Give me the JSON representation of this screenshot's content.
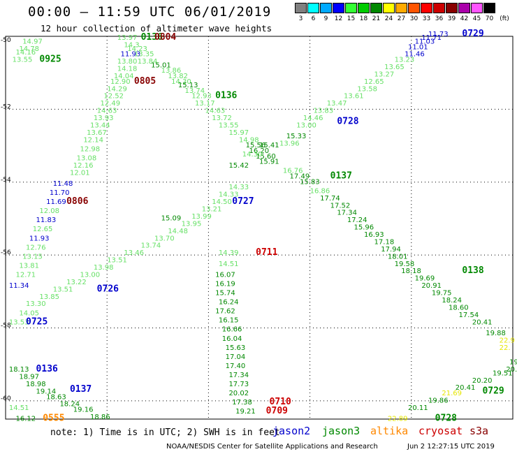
{
  "header": {
    "title": "00:00 – 11:59 UTC 06/01/2019",
    "subtitle": "12 hour collection of altimeter wave heights"
  },
  "legend": {
    "unit": "(ft)",
    "bins": [
      {
        "label": "3",
        "color": "#808080"
      },
      {
        "label": "6",
        "color": "#00ffff"
      },
      {
        "label": "9",
        "color": "#00aaff"
      },
      {
        "label": "12",
        "color": "#0000ff"
      },
      {
        "label": "15",
        "color": "#33ff33"
      },
      {
        "label": "18",
        "color": "#00cc00"
      },
      {
        "label": "21",
        "color": "#008800"
      },
      {
        "label": "24",
        "color": "#ffff00"
      },
      {
        "label": "27",
        "color": "#ffaa00"
      },
      {
        "label": "30",
        "color": "#ff5500"
      },
      {
        "label": "33",
        "color": "#ff0000"
      },
      {
        "label": "36",
        "color": "#cc0000"
      },
      {
        "label": "39",
        "color": "#880000"
      },
      {
        "label": "42",
        "color": "#aa00aa"
      },
      {
        "label": "45",
        "color": "#ff55ff"
      },
      {
        "label": "70",
        "color": "#000000"
      }
    ]
  },
  "axes": {
    "lon_ticks": [
      "15",
      "18",
      "21",
      "24",
      "27",
      "30"
    ],
    "lat_ticks": [
      "-50",
      "-52",
      "-54",
      "-56",
      "-58",
      "-60"
    ]
  },
  "colors": {
    "lgreen": "#66e066",
    "green": "#008800",
    "blue": "#0000cc",
    "red": "#cc0000",
    "dred": "#880000",
    "yellow": "#e6e600",
    "orange": "#ff8800"
  },
  "observations": [
    {
      "lon": 15.5,
      "lat": -50.2,
      "t": "14.97",
      "c": "lgreen"
    },
    {
      "lon": 15.4,
      "lat": -50.4,
      "t": "14.78",
      "c": "lgreen"
    },
    {
      "lon": 15.3,
      "lat": -50.5,
      "t": "14.16",
      "c": "lgreen"
    },
    {
      "lon": 15.2,
      "lat": -50.7,
      "t": "13.55",
      "c": "lgreen"
    },
    {
      "lon": 16.0,
      "lat": -50.7,
      "t": "0925",
      "c": "green",
      "big": 1
    },
    {
      "lon": 18.3,
      "lat": -50.1,
      "t": "13.97",
      "c": "lgreen"
    },
    {
      "lon": 19.0,
      "lat": -50.1,
      "t": "0136",
      "c": "green",
      "big": 1
    },
    {
      "lon": 19.4,
      "lat": -50.1,
      "t": "0804",
      "c": "dred",
      "big": 1
    },
    {
      "lon": 18.5,
      "lat": -50.3,
      "t": "14.3",
      "c": "lgreen"
    },
    {
      "lon": 18.6,
      "lat": -50.4,
      "t": "14.23",
      "c": "lgreen"
    },
    {
      "lon": 18.4,
      "lat": -50.55,
      "t": "11.93",
      "c": "blue"
    },
    {
      "lon": 18.8,
      "lat": -50.55,
      "t": "13.35",
      "c": "lgreen"
    },
    {
      "lon": 18.3,
      "lat": -50.75,
      "t": "13.80",
      "c": "lgreen"
    },
    {
      "lon": 18.9,
      "lat": -50.75,
      "t": "13.84",
      "c": "lgreen"
    },
    {
      "lon": 19.3,
      "lat": -50.85,
      "t": "15.01",
      "c": "green"
    },
    {
      "lon": 18.3,
      "lat": -50.95,
      "t": "14.18",
      "c": "lgreen"
    },
    {
      "lon": 19.6,
      "lat": -51.0,
      "t": "13.86",
      "c": "lgreen"
    },
    {
      "lon": 18.2,
      "lat": -51.15,
      "t": "14.04",
      "c": "lgreen"
    },
    {
      "lon": 19.8,
      "lat": -51.15,
      "t": "13.82",
      "c": "lgreen"
    },
    {
      "lon": 18.1,
      "lat": -51.3,
      "t": "12.90",
      "c": "lgreen"
    },
    {
      "lon": 18.8,
      "lat": -51.3,
      "t": "0805",
      "c": "dred",
      "big": 1
    },
    {
      "lon": 19.9,
      "lat": -51.3,
      "t": "14.30",
      "c": "lgreen"
    },
    {
      "lon": 20.1,
      "lat": -51.4,
      "t": "15.13",
      "c": "green"
    },
    {
      "lon": 18.0,
      "lat": -51.5,
      "t": "14.29",
      "c": "lgreen"
    },
    {
      "lon": 20.3,
      "lat": -51.55,
      "t": "13.74",
      "c": "lgreen"
    },
    {
      "lon": 17.9,
      "lat": -51.7,
      "t": "12.52",
      "c": "lgreen"
    },
    {
      "lon": 20.5,
      "lat": -51.7,
      "t": "12.93",
      "c": "lgreen"
    },
    {
      "lon": 21.2,
      "lat": -51.7,
      "t": "0136",
      "c": "green",
      "big": 1
    },
    {
      "lon": 17.8,
      "lat": -51.9,
      "t": "12.49",
      "c": "lgreen"
    },
    {
      "lon": 20.6,
      "lat": -51.9,
      "t": "13.17",
      "c": "lgreen"
    },
    {
      "lon": 17.7,
      "lat": -52.1,
      "t": "14.63",
      "c": "lgreen"
    },
    {
      "lon": 20.9,
      "lat": -52.1,
      "t": "14.63",
      "c": "lgreen"
    },
    {
      "lon": 17.6,
      "lat": -52.3,
      "t": "13.93",
      "c": "lgreen"
    },
    {
      "lon": 21.1,
      "lat": -52.3,
      "t": "13.72",
      "c": "lgreen"
    },
    {
      "lon": 17.5,
      "lat": -52.5,
      "t": "13.44",
      "c": "lgreen"
    },
    {
      "lon": 21.3,
      "lat": -52.5,
      "t": "13.55",
      "c": "lgreen"
    },
    {
      "lon": 17.4,
      "lat": -52.7,
      "t": "13.67",
      "c": "lgreen"
    },
    {
      "lon": 21.6,
      "lat": -52.7,
      "t": "15.97",
      "c": "lgreen"
    },
    {
      "lon": 17.3,
      "lat": -52.9,
      "t": "12.14",
      "c": "lgreen"
    },
    {
      "lon": 21.9,
      "lat": -52.9,
      "t": "14.98",
      "c": "lgreen"
    },
    {
      "lon": 17.2,
      "lat": -53.15,
      "t": "12.98",
      "c": "lgreen"
    },
    {
      "lon": 22.1,
      "lat": -53.05,
      "t": "15.56",
      "c": "green"
    },
    {
      "lon": 22.5,
      "lat": -53.05,
      "t": "15.41",
      "c": "green"
    },
    {
      "lon": 22.2,
      "lat": -53.2,
      "t": "16.20",
      "c": "green"
    },
    {
      "lon": 22.4,
      "lat": -53.35,
      "t": "15.60",
      "c": "green"
    },
    {
      "lon": 17.1,
      "lat": -53.4,
      "t": "13.08",
      "c": "lgreen"
    },
    {
      "lon": 22.5,
      "lat": -53.5,
      "t": "15.91",
      "c": "green"
    },
    {
      "lon": 21.6,
      "lat": -53.6,
      "t": "15.42",
      "c": "green"
    },
    {
      "lon": 17.0,
      "lat": -53.6,
      "t": "12.16",
      "c": "lgreen"
    },
    {
      "lon": 16.9,
      "lat": -53.8,
      "t": "12.01",
      "c": "lgreen"
    },
    {
      "lon": 23.2,
      "lat": -53.75,
      "t": "16.76",
      "c": "lgreen"
    },
    {
      "lon": 23.4,
      "lat": -53.9,
      "t": "17.49",
      "c": "green"
    },
    {
      "lon": 24.6,
      "lat": -53.9,
      "t": "0137",
      "c": "green",
      "big": 1
    },
    {
      "lon": 23.7,
      "lat": -54.05,
      "t": "15.83",
      "c": "green"
    },
    {
      "lon": 16.4,
      "lat": -54.1,
      "t": "11.48",
      "c": "blue"
    },
    {
      "lon": 16.3,
      "lat": -54.35,
      "t": "11.70",
      "c": "blue"
    },
    {
      "lon": 16.2,
      "lat": -54.6,
      "t": "11.69",
      "c": "blue"
    },
    {
      "lon": 16.8,
      "lat": -54.6,
      "t": "0806",
      "c": "dred",
      "big": 1
    },
    {
      "lon": 16.0,
      "lat": -54.85,
      "t": "12.08",
      "c": "lgreen"
    },
    {
      "lon": 15.9,
      "lat": -55.1,
      "t": "11.83",
      "c": "blue"
    },
    {
      "lon": 15.8,
      "lat": -55.35,
      "t": "12.65",
      "c": "lgreen"
    },
    {
      "lon": 15.7,
      "lat": -55.6,
      "t": "11.93",
      "c": "blue"
    },
    {
      "lon": 15.6,
      "lat": -55.85,
      "t": "12.76",
      "c": "lgreen"
    },
    {
      "lon": 21.7,
      "lat": -54.6,
      "t": "0727",
      "c": "blue",
      "big": 1
    },
    {
      "lon": 24.0,
      "lat": -54.3,
      "t": "16.86",
      "c": "lgreen"
    },
    {
      "lon": 24.3,
      "lat": -54.5,
      "t": "17.74",
      "c": "green"
    },
    {
      "lon": 24.6,
      "lat": -54.7,
      "t": "17.52",
      "c": "green"
    },
    {
      "lon": 24.8,
      "lat": -54.9,
      "t": "17.34",
      "c": "green"
    },
    {
      "lon": 25.1,
      "lat": -55.1,
      "t": "17.24",
      "c": "green"
    },
    {
      "lon": 25.3,
      "lat": -55.3,
      "t": "15.96",
      "c": "green"
    },
    {
      "lon": 25.6,
      "lat": -55.5,
      "t": "16.93",
      "c": "green"
    },
    {
      "lon": 25.9,
      "lat": -55.7,
      "t": "17.18",
      "c": "green"
    },
    {
      "lon": 26.1,
      "lat": -55.9,
      "t": "17.94",
      "c": "green"
    },
    {
      "lon": 26.3,
      "lat": -56.1,
      "t": "18.01",
      "c": "green"
    },
    {
      "lon": 15.5,
      "lat": -56.1,
      "t": "13.15",
      "c": "lgreen"
    },
    {
      "lon": 15.4,
      "lat": -56.35,
      "t": "13.81",
      "c": "lgreen"
    },
    {
      "lon": 15.3,
      "lat": -56.6,
      "t": "12.71",
      "c": "lgreen"
    },
    {
      "lon": 15.1,
      "lat": -56.9,
      "t": "11.34",
      "c": "blue"
    },
    {
      "lon": 17.7,
      "lat": -57.0,
      "t": "0726",
      "c": "blue",
      "big": 1
    },
    {
      "lon": 21.3,
      "lat": -56.0,
      "t": "14.39",
      "c": "lgreen"
    },
    {
      "lon": 22.4,
      "lat": -56.0,
      "t": "0711",
      "c": "red",
      "big": 1
    },
    {
      "lon": 21.3,
      "lat": -56.3,
      "t": "14.51",
      "c": "lgreen"
    },
    {
      "lon": 21.2,
      "lat": -56.6,
      "t": "16.07",
      "c": "green"
    },
    {
      "lon": 21.2,
      "lat": -56.85,
      "t": "16.19",
      "c": "green"
    },
    {
      "lon": 21.2,
      "lat": -57.1,
      "t": "15.74",
      "c": "green"
    },
    {
      "lon": 21.3,
      "lat": -57.35,
      "t": "16.24",
      "c": "green"
    },
    {
      "lon": 21.2,
      "lat": -57.6,
      "t": "17.62",
      "c": "green"
    },
    {
      "lon": 21.3,
      "lat": -57.85,
      "t": "16.15",
      "c": "green"
    },
    {
      "lon": 21.4,
      "lat": -58.1,
      "t": "16.66",
      "c": "green"
    },
    {
      "lon": 21.4,
      "lat": -58.35,
      "t": "16.04",
      "c": "green"
    },
    {
      "lon": 21.5,
      "lat": -58.6,
      "t": "15.63",
      "c": "green"
    },
    {
      "lon": 21.5,
      "lat": -58.85,
      "t": "17.04",
      "c": "green"
    },
    {
      "lon": 21.5,
      "lat": -59.1,
      "t": "17.40",
      "c": "green"
    },
    {
      "lon": 21.6,
      "lat": -59.35,
      "t": "17.34",
      "c": "green"
    },
    {
      "lon": 21.6,
      "lat": -59.6,
      "t": "17.73",
      "c": "green"
    },
    {
      "lon": 21.6,
      "lat": -59.85,
      "t": "20.02",
      "c": "green"
    },
    {
      "lon": 21.7,
      "lat": -60.1,
      "t": "17.38",
      "c": "green"
    },
    {
      "lon": 22.8,
      "lat": -60.1,
      "t": "0710",
      "c": "red",
      "big": 1
    },
    {
      "lon": 21.8,
      "lat": -60.35,
      "t": "19.21",
      "c": "green"
    },
    {
      "lon": 22.7,
      "lat": -60.35,
      "t": "0709",
      "c": "red",
      "big": 1
    },
    {
      "lon": 26.5,
      "lat": -56.3,
      "t": "19.58",
      "c": "green"
    },
    {
      "lon": 26.7,
      "lat": -56.5,
      "t": "18.18",
      "c": "green"
    },
    {
      "lon": 27.1,
      "lat": -56.7,
      "t": "19.69",
      "c": "green"
    },
    {
      "lon": 28.5,
      "lat": -56.5,
      "t": "0138",
      "c": "green",
      "big": 1
    },
    {
      "lon": 27.3,
      "lat": -56.9,
      "t": "20.91",
      "c": "green"
    },
    {
      "lon": 27.6,
      "lat": -57.1,
      "t": "19.75",
      "c": "green"
    },
    {
      "lon": 27.9,
      "lat": -57.3,
      "t": "18.24",
      "c": "green"
    },
    {
      "lon": 28.1,
      "lat": -57.5,
      "t": "18.60",
      "c": "green"
    },
    {
      "lon": 28.4,
      "lat": -57.7,
      "t": "17.54",
      "c": "green"
    },
    {
      "lon": 28.8,
      "lat": -57.9,
      "t": "20.41",
      "c": "green"
    },
    {
      "lon": 29.2,
      "lat": -58.2,
      "t": "19.88",
      "c": "green"
    },
    {
      "lon": 29.6,
      "lat": -58.4,
      "t": "22.9",
      "c": "yellow"
    },
    {
      "lon": 29.6,
      "lat": -58.6,
      "t": "22.",
      "c": "yellow"
    },
    {
      "lon": 15.1,
      "lat": -57.9,
      "t": "13.53",
      "c": "lgreen"
    },
    {
      "lon": 15.6,
      "lat": -57.9,
      "t": "0725",
      "c": "blue",
      "big": 1
    },
    {
      "lon": 15.4,
      "lat": -57.65,
      "t": "14.05",
      "c": "lgreen"
    },
    {
      "lon": 15.6,
      "lat": -57.4,
      "t": "13.30",
      "c": "lgreen"
    },
    {
      "lon": 16.0,
      "lat": -57.2,
      "t": "13.85",
      "c": "lgreen"
    },
    {
      "lon": 16.4,
      "lat": -57.0,
      "t": "13.51",
      "c": "lgreen"
    },
    {
      "lon": 16.8,
      "lat": -56.8,
      "t": "13.22",
      "c": "lgreen"
    },
    {
      "lon": 17.2,
      "lat": -56.6,
      "t": "13.00",
      "c": "lgreen"
    },
    {
      "lon": 17.6,
      "lat": -56.4,
      "t": "13.98",
      "c": "lgreen"
    },
    {
      "lon": 18.0,
      "lat": -56.2,
      "t": "13.51",
      "c": "lgreen"
    },
    {
      "lon": 18.5,
      "lat": -56.0,
      "t": "13.46",
      "c": "lgreen"
    },
    {
      "lon": 19.0,
      "lat": -55.8,
      "t": "13.74",
      "c": "lgreen"
    },
    {
      "lon": 19.4,
      "lat": -55.6,
      "t": "13.70",
      "c": "lgreen"
    },
    {
      "lon": 19.8,
      "lat": -55.4,
      "t": "14.48",
      "c": "lgreen"
    },
    {
      "lon": 19.6,
      "lat": -55.05,
      "t": "15.09",
      "c": "green"
    },
    {
      "lon": 20.2,
      "lat": -55.2,
      "t": "13.95",
      "c": "lgreen"
    },
    {
      "lon": 20.5,
      "lat": -55.0,
      "t": "13.99",
      "c": "lgreen"
    },
    {
      "lon": 20.8,
      "lat": -54.8,
      "t": "13.21",
      "c": "lgreen"
    },
    {
      "lon": 21.1,
      "lat": -54.6,
      "t": "14.50",
      "c": "lgreen"
    },
    {
      "lon": 21.3,
      "lat": -54.4,
      "t": "14.33",
      "c": "lgreen"
    },
    {
      "lon": 21.6,
      "lat": -54.2,
      "t": "14.33",
      "c": "lgreen"
    },
    {
      "lon": 22.0,
      "lat": -53.3,
      "t": "14.30",
      "c": "lgreen"
    },
    {
      "lon": 23.1,
      "lat": -53.0,
      "t": "13.96",
      "c": "lgreen"
    },
    {
      "lon": 23.3,
      "lat": -52.8,
      "t": "15.33",
      "c": "green"
    },
    {
      "lon": 23.6,
      "lat": -52.5,
      "t": "13.00",
      "c": "lgreen"
    },
    {
      "lon": 23.8,
      "lat": -52.3,
      "t": "14.46",
      "c": "lgreen"
    },
    {
      "lon": 24.8,
      "lat": -52.4,
      "t": "0728",
      "c": "blue",
      "big": 1
    },
    {
      "lon": 24.1,
      "lat": -52.1,
      "t": "13.83",
      "c": "lgreen"
    },
    {
      "lon": 24.5,
      "lat": -51.9,
      "t": "13.47",
      "c": "lgreen"
    },
    {
      "lon": 25.0,
      "lat": -51.7,
      "t": "13.61",
      "c": "lgreen"
    },
    {
      "lon": 25.4,
      "lat": -51.5,
      "t": "13.58",
      "c": "lgreen"
    },
    {
      "lon": 25.6,
      "lat": -51.3,
      "t": "12.65",
      "c": "lgreen"
    },
    {
      "lon": 25.9,
      "lat": -51.1,
      "t": "13.27",
      "c": "lgreen"
    },
    {
      "lon": 26.2,
      "lat": -50.9,
      "t": "13.65",
      "c": "lgreen"
    },
    {
      "lon": 26.5,
      "lat": -50.7,
      "t": "13.23",
      "c": "lgreen"
    },
    {
      "lon": 26.8,
      "lat": -50.55,
      "t": "11.46",
      "c": "blue"
    },
    {
      "lon": 26.9,
      "lat": -50.35,
      "t": "11.01",
      "c": "blue"
    },
    {
      "lon": 27.1,
      "lat": -50.2,
      "t": "11.03",
      "c": "blue"
    },
    {
      "lon": 27.3,
      "lat": -50.1,
      "t": "11.71",
      "c": "blue"
    },
    {
      "lon": 27.5,
      "lat": -50.0,
      "t": "11.73",
      "c": "blue"
    },
    {
      "lon": 28.5,
      "lat": -50.0,
      "t": "0729",
      "c": "blue",
      "big": 1
    },
    {
      "lon": 15.1,
      "lat": -59.2,
      "t": "18.13",
      "c": "green"
    },
    {
      "lon": 15.9,
      "lat": -59.2,
      "t": "0136",
      "c": "blue",
      "big": 1
    },
    {
      "lon": 15.4,
      "lat": -59.4,
      "t": "18.97",
      "c": "green"
    },
    {
      "lon": 15.6,
      "lat": -59.6,
      "t": "18.98",
      "c": "green"
    },
    {
      "lon": 15.9,
      "lat": -59.8,
      "t": "19.14",
      "c": "green"
    },
    {
      "lon": 16.9,
      "lat": -59.75,
      "t": "0137",
      "c": "blue",
      "big": 1
    },
    {
      "lon": 16.2,
      "lat": -59.95,
      "t": "18.63",
      "c": "green"
    },
    {
      "lon": 16.6,
      "lat": -60.15,
      "t": "18.24",
      "c": "green"
    },
    {
      "lon": 17.0,
      "lat": -60.3,
      "t": "19.16",
      "c": "green"
    },
    {
      "lon": 17.5,
      "lat": -60.5,
      "t": "18.86",
      "c": "green"
    },
    {
      "lon": 15.1,
      "lat": -60.25,
      "t": "14.51",
      "c": "lgreen"
    },
    {
      "lon": 15.3,
      "lat": -60.55,
      "t": "16.12",
      "c": "green"
    },
    {
      "lon": 16.1,
      "lat": -60.55,
      "t": "0555",
      "c": "orange",
      "big": 1
    },
    {
      "lon": 29.9,
      "lat": -59.0,
      "t": "19",
      "c": "green"
    },
    {
      "lon": 29.8,
      "lat": -59.2,
      "t": "20.17",
      "c": "green"
    },
    {
      "lon": 29.4,
      "lat": -59.3,
      "t": "19.51",
      "c": "green"
    },
    {
      "lon": 28.8,
      "lat": -59.5,
      "t": "20.20",
      "c": "green"
    },
    {
      "lon": 28.3,
      "lat": -59.7,
      "t": "20.41",
      "c": "green"
    },
    {
      "lon": 29.1,
      "lat": -59.8,
      "t": "0729",
      "c": "green",
      "big": 1
    },
    {
      "lon": 27.9,
      "lat": -59.85,
      "t": "21.69",
      "c": "yellow"
    },
    {
      "lon": 27.5,
      "lat": -60.05,
      "t": "19.86",
      "c": "green"
    },
    {
      "lon": 26.9,
      "lat": -60.25,
      "t": "20.11",
      "c": "green"
    },
    {
      "lon": 26.3,
      "lat": -60.55,
      "t": "22.89",
      "c": "yellow"
    },
    {
      "lon": 27.7,
      "lat": -60.55,
      "t": "0728",
      "c": "green",
      "big": 1
    }
  ],
  "footer": {
    "note": "note: 1) Time is in UTC; 2) SWH is in feet",
    "satellites": [
      {
        "name": "jason2",
        "color": "#0000cc"
      },
      {
        "name": "jason3",
        "color": "#008800"
      },
      {
        "name": "altika",
        "color": "#ff8800"
      },
      {
        "name": "cryosat",
        "color": "#cc0000"
      },
      {
        "name": "s3a",
        "color": "#880000"
      }
    ],
    "credit": "NOAA/NESDIS Center for Satellite Applications and Research",
    "timestamp": "Jun  2 12:27:15 UTC 2019"
  }
}
